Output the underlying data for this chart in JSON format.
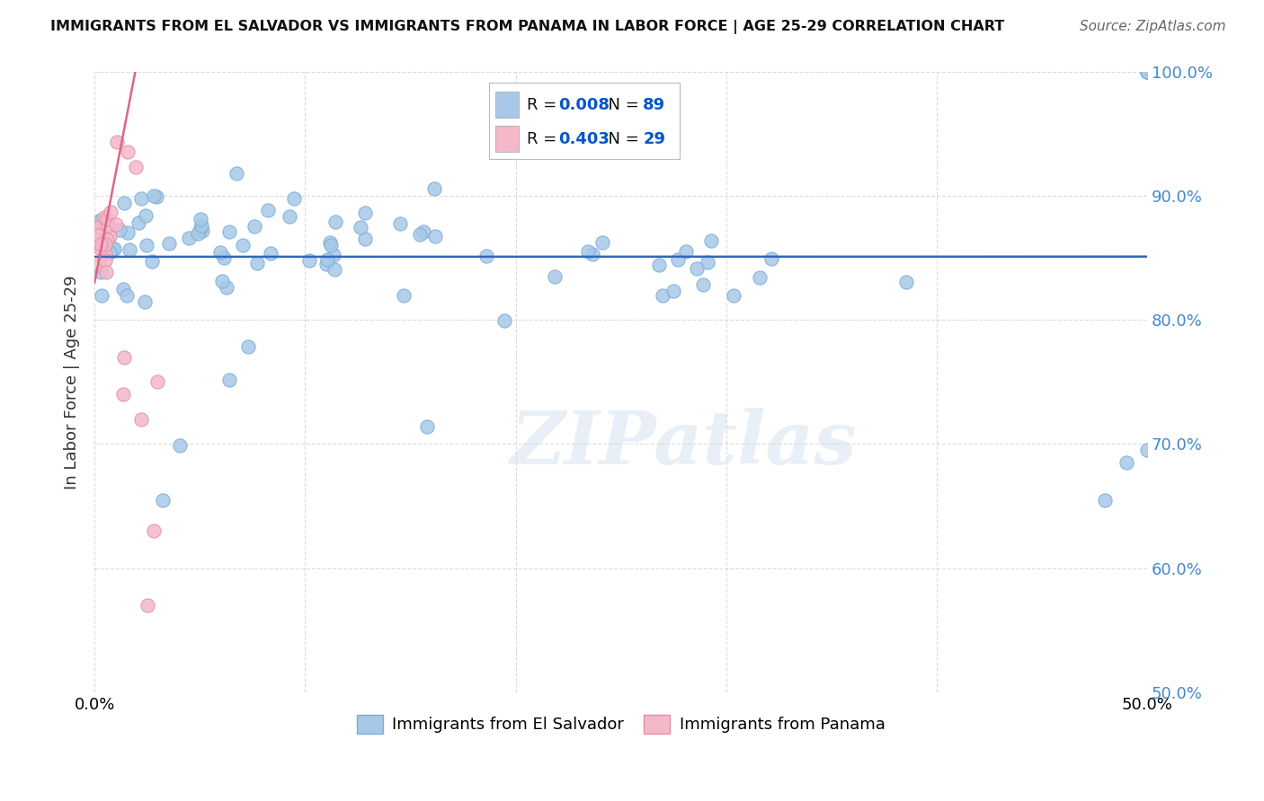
{
  "title": "IMMIGRANTS FROM EL SALVADOR VS IMMIGRANTS FROM PANAMA IN LABOR FORCE | AGE 25-29 CORRELATION CHART",
  "source": "Source: ZipAtlas.com",
  "ylabel": "In Labor Force | Age 25-29",
  "watermark": "ZIPatlas",
  "xlim": [
    0.0,
    0.5
  ],
  "ylim": [
    0.5,
    1.0
  ],
  "blue_R": 0.008,
  "blue_N": 89,
  "pink_R": 0.403,
  "pink_N": 29,
  "blue_color": "#a8c8e8",
  "blue_edge_color": "#7aafd4",
  "pink_color": "#f4b8c8",
  "pink_edge_color": "#e090a8",
  "blue_line_color": "#3366bb",
  "pink_line_color": "#dd6688",
  "background_color": "#ffffff",
  "grid_color": "#cccccc",
  "right_tick_color": "#4488cc",
  "title_color": "#111111",
  "source_color": "#666666",
  "legend_r_color": "#0055cc",
  "legend_n_color": "#0055cc",
  "ytick_right": [
    0.5,
    0.6,
    0.7,
    0.8,
    0.9,
    1.0
  ],
  "ytick_right_labels": [
    "50.0%",
    "60.0%",
    "70.0%",
    "80.0%",
    "90.0%",
    "100.0%"
  ],
  "xtick_vals": [
    0.0,
    0.1,
    0.2,
    0.3,
    0.4,
    0.5
  ],
  "xtick_labels": [
    "0.0%",
    "",
    "",
    "",
    "",
    "50.0%"
  ]
}
